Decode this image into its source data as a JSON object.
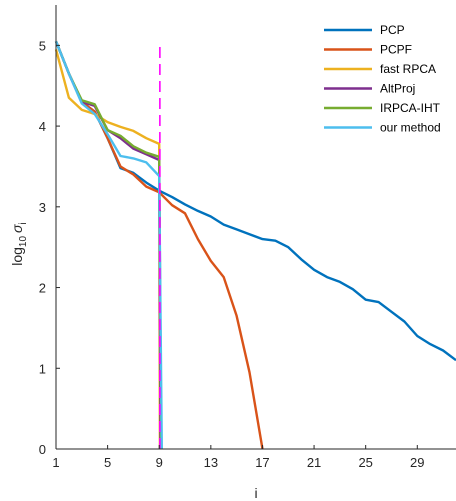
{
  "chart_data": {
    "type": "line",
    "xlabel": "i",
    "ylabel": {
      "base": "log",
      "sub": "10",
      "sigma": "σ",
      "index": "i"
    },
    "xlim": [
      1,
      32
    ],
    "ylim": [
      0,
      5.5
    ],
    "xticks": [
      1,
      5,
      9,
      13,
      17,
      21,
      25,
      29
    ],
    "yticks": [
      0,
      1,
      2,
      3,
      4,
      5
    ],
    "grid": false,
    "legend_position": "top-right",
    "vline": {
      "x": 9.05,
      "color": "#ff00ff",
      "style": "dashed"
    },
    "series": [
      {
        "name": "PCP",
        "color": "#0072bd",
        "x": [
          1,
          2,
          3,
          4,
          5,
          6,
          7,
          8,
          9,
          10,
          11,
          12,
          13,
          14,
          15,
          16,
          17,
          18,
          19,
          20,
          21,
          22,
          23,
          24,
          25,
          26,
          27,
          28,
          29,
          30,
          31,
          32
        ],
        "y": [
          5.05,
          4.65,
          4.3,
          4.18,
          3.85,
          3.48,
          3.42,
          3.3,
          3.2,
          3.12,
          3.03,
          2.95,
          2.88,
          2.78,
          2.72,
          2.66,
          2.6,
          2.58,
          2.5,
          2.35,
          2.22,
          2.13,
          2.07,
          1.98,
          1.85,
          1.82,
          1.7,
          1.58,
          1.4,
          1.3,
          1.22,
          1.1
        ]
      },
      {
        "name": "PCPF",
        "color": "#d95319",
        "x": [
          1,
          2,
          3,
          4,
          5,
          6,
          7,
          8,
          9,
          10,
          11,
          12,
          13,
          14,
          15,
          16,
          17
        ],
        "y": [
          5.05,
          4.65,
          4.3,
          4.18,
          3.85,
          3.5,
          3.4,
          3.25,
          3.18,
          3.02,
          2.92,
          2.6,
          2.33,
          2.13,
          1.65,
          0.95,
          0.0
        ]
      },
      {
        "name": "fast RPCA",
        "color": "#edb120",
        "x": [
          1,
          2,
          3,
          4,
          5,
          6,
          7,
          8,
          9,
          9.05
        ],
        "y": [
          4.95,
          4.35,
          4.2,
          4.15,
          4.05,
          3.99,
          3.94,
          3.85,
          3.78,
          0.0
        ]
      },
      {
        "name": "AltProj",
        "color": "#7e2f8e",
        "x": [
          1,
          2,
          3,
          4,
          5,
          6,
          7,
          8,
          9,
          9.1
        ],
        "y": [
          5.05,
          4.65,
          4.3,
          4.25,
          3.95,
          3.85,
          3.72,
          3.65,
          3.58,
          0.0
        ]
      },
      {
        "name": "IRPCA-IHT",
        "color": "#77ac30",
        "x": [
          1,
          2,
          3,
          4,
          5,
          6,
          7,
          8,
          9,
          9.15
        ],
        "y": [
          5.05,
          4.65,
          4.32,
          4.27,
          3.95,
          3.88,
          3.75,
          3.67,
          3.62,
          0.0
        ]
      },
      {
        "name": "our method",
        "color": "#4dbeee",
        "x": [
          1,
          2,
          3,
          4,
          5,
          6,
          7,
          8,
          9,
          9.2
        ],
        "y": [
          5.05,
          4.65,
          4.28,
          4.15,
          3.9,
          3.63,
          3.6,
          3.55,
          3.38,
          0.0
        ]
      }
    ]
  }
}
